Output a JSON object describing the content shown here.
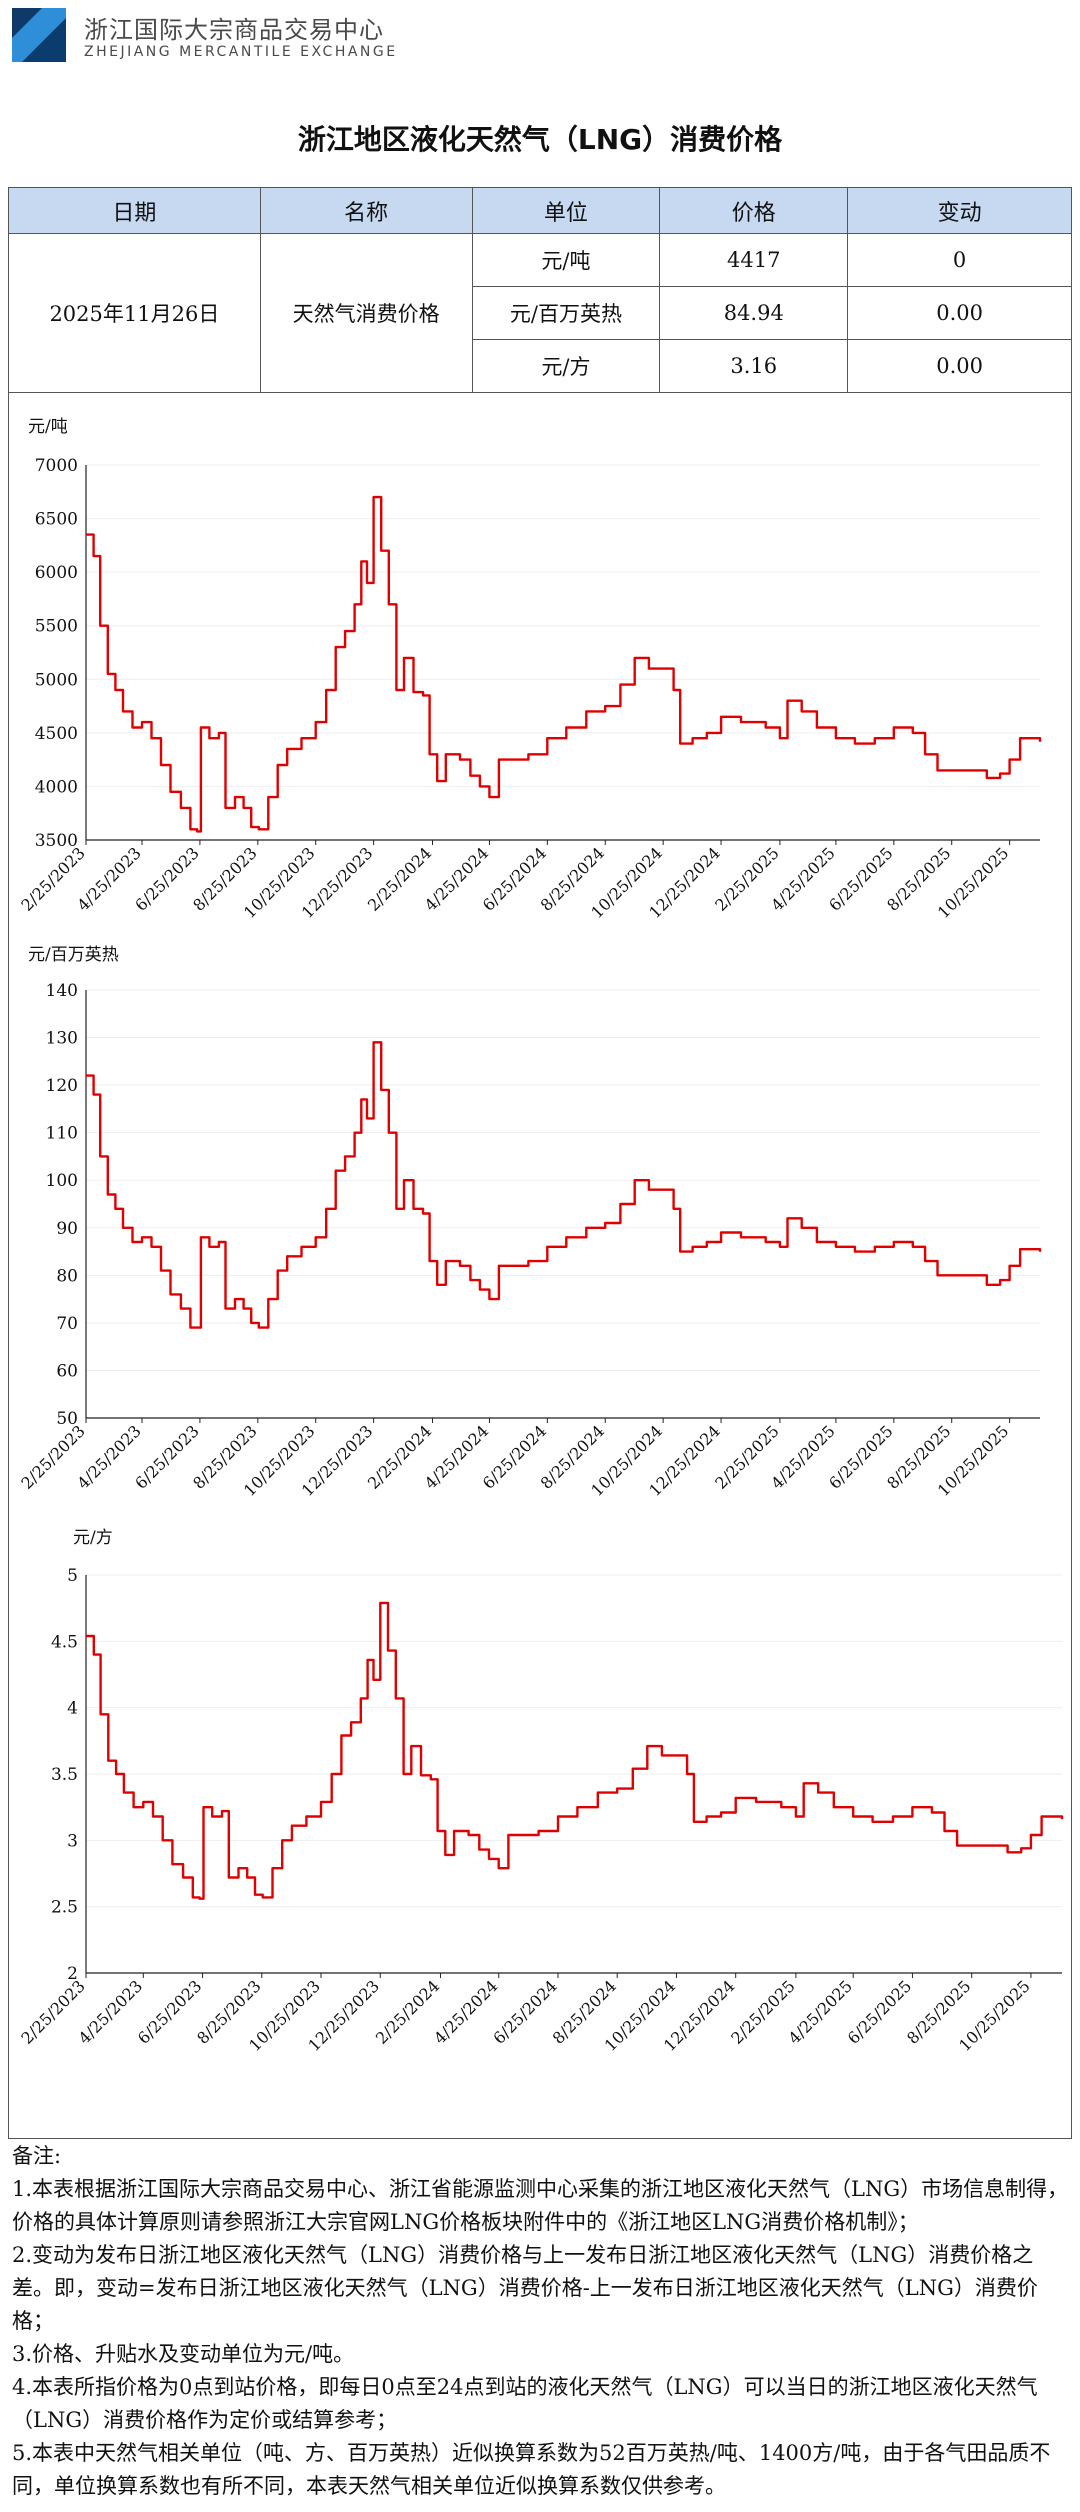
{
  "header": {
    "org_name_cn": "浙江国际大宗商品交易中心",
    "org_name_en": "ZHEJIANG MERCANTILE EXCHANGE"
  },
  "title": "浙江地区液化天然气（LNG）消费价格",
  "table": {
    "headers": [
      "日期",
      "名称",
      "单位",
      "价格",
      "变动"
    ],
    "date": "2025年11月26日",
    "name": "天然气消费价格",
    "rows": [
      {
        "unit": "元/吨",
        "price": "4417",
        "change": "0"
      },
      {
        "unit": "元/百万英热",
        "price": "84.94",
        "change": "0.00"
      },
      {
        "unit": "元/方",
        "price": "3.16",
        "change": "0.00"
      }
    ]
  },
  "colors": {
    "line": "#e00000",
    "header_bg": "#c6d9f1",
    "grid": "#eeeeee"
  },
  "chart_data": [
    {
      "type": "line",
      "ylabel": "元/吨",
      "ylim": [
        3500,
        7000
      ],
      "yticks": [
        3500,
        4000,
        4500,
        5000,
        5500,
        6000,
        6500,
        7000
      ],
      "xticks": [
        "2/25/2023",
        "4/25/2023",
        "6/25/2023",
        "8/25/2023",
        "10/25/2023",
        "12/25/2023",
        "2/25/2024",
        "4/25/2024",
        "6/25/2024",
        "8/25/2024",
        "10/25/2024",
        "12/25/2024",
        "2/25/2025",
        "4/25/2025",
        "6/25/2025",
        "8/25/2025",
        "10/25/2025"
      ],
      "x_start": "2023-02-25",
      "x_end": "2025-11-26",
      "points": [
        [
          "2023-02-25",
          6350
        ],
        [
          "2023-03-05",
          6150
        ],
        [
          "2023-03-12",
          5500
        ],
        [
          "2023-03-20",
          5050
        ],
        [
          "2023-03-28",
          4900
        ],
        [
          "2023-04-05",
          4700
        ],
        [
          "2023-04-15",
          4550
        ],
        [
          "2023-04-25",
          4600
        ],
        [
          "2023-05-05",
          4450
        ],
        [
          "2023-05-15",
          4200
        ],
        [
          "2023-05-25",
          3950
        ],
        [
          "2023-06-05",
          3800
        ],
        [
          "2023-06-15",
          3600
        ],
        [
          "2023-06-22",
          3580
        ],
        [
          "2023-06-26",
          4550
        ],
        [
          "2023-07-05",
          4450
        ],
        [
          "2023-07-15",
          4500
        ],
        [
          "2023-07-22",
          3800
        ],
        [
          "2023-08-01",
          3900
        ],
        [
          "2023-08-10",
          3800
        ],
        [
          "2023-08-18",
          3620
        ],
        [
          "2023-08-26",
          3600
        ],
        [
          "2023-09-05",
          3900
        ],
        [
          "2023-09-15",
          4200
        ],
        [
          "2023-09-25",
          4350
        ],
        [
          "2023-10-10",
          4450
        ],
        [
          "2023-10-25",
          4600
        ],
        [
          "2023-11-05",
          4900
        ],
        [
          "2023-11-15",
          5300
        ],
        [
          "2023-11-25",
          5450
        ],
        [
          "2023-12-05",
          5700
        ],
        [
          "2023-12-12",
          6100
        ],
        [
          "2023-12-18",
          5900
        ],
        [
          "2023-12-25",
          6700
        ],
        [
          "2024-01-02",
          6200
        ],
        [
          "2024-01-10",
          5700
        ],
        [
          "2024-01-18",
          4900
        ],
        [
          "2024-01-26",
          5200
        ],
        [
          "2024-02-05",
          4880
        ],
        [
          "2024-02-15",
          4850
        ],
        [
          "2024-02-22",
          4300
        ],
        [
          "2024-03-01",
          4050
        ],
        [
          "2024-03-10",
          4300
        ],
        [
          "2024-03-25",
          4250
        ],
        [
          "2024-04-05",
          4100
        ],
        [
          "2024-04-15",
          4000
        ],
        [
          "2024-04-25",
          3900
        ],
        [
          "2024-05-05",
          4250
        ],
        [
          "2024-05-20",
          4250
        ],
        [
          "2024-06-05",
          4300
        ],
        [
          "2024-06-25",
          4450
        ],
        [
          "2024-07-15",
          4550
        ],
        [
          "2024-08-05",
          4700
        ],
        [
          "2024-08-25",
          4750
        ],
        [
          "2024-09-10",
          4950
        ],
        [
          "2024-09-25",
          5200
        ],
        [
          "2024-10-10",
          5100
        ],
        [
          "2024-10-25",
          5100
        ],
        [
          "2024-11-05",
          4900
        ],
        [
          "2024-11-12",
          4400
        ],
        [
          "2024-11-25",
          4450
        ],
        [
          "2024-12-10",
          4500
        ],
        [
          "2024-12-25",
          4650
        ],
        [
          "2025-01-15",
          4600
        ],
        [
          "2025-02-10",
          4550
        ],
        [
          "2025-02-25",
          4450
        ],
        [
          "2025-03-05",
          4800
        ],
        [
          "2025-03-20",
          4700
        ],
        [
          "2025-04-05",
          4550
        ],
        [
          "2025-04-25",
          4450
        ],
        [
          "2025-05-15",
          4400
        ],
        [
          "2025-06-05",
          4450
        ],
        [
          "2025-06-25",
          4550
        ],
        [
          "2025-07-15",
          4500
        ],
        [
          "2025-07-28",
          4300
        ],
        [
          "2025-08-10",
          4150
        ],
        [
          "2025-08-25",
          4150
        ],
        [
          "2025-09-15",
          4150
        ],
        [
          "2025-10-01",
          4080
        ],
        [
          "2025-10-15",
          4120
        ],
        [
          "2025-10-25",
          4250
        ],
        [
          "2025-11-05",
          4450
        ],
        [
          "2025-11-15",
          4450
        ],
        [
          "2025-11-26",
          4417
        ]
      ]
    },
    {
      "type": "line",
      "ylabel": "元/百万英热",
      "ylim": [
        50,
        140
      ],
      "yticks": [
        50,
        60,
        70,
        80,
        90,
        100,
        110,
        120,
        130,
        140
      ],
      "xticks": [
        "2/25/2023",
        "4/25/2023",
        "6/25/2023",
        "8/25/2023",
        "10/25/2023",
        "12/25/2023",
        "2/25/2024",
        "4/25/2024",
        "6/25/2024",
        "8/25/2024",
        "10/25/2024",
        "12/25/2024",
        "2/25/2025",
        "4/25/2025",
        "6/25/2025",
        "8/25/2025",
        "10/25/2025"
      ],
      "x_start": "2023-02-25",
      "x_end": "2025-11-26",
      "points": [
        [
          "2023-02-25",
          122
        ],
        [
          "2023-03-05",
          118
        ],
        [
          "2023-03-12",
          105
        ],
        [
          "2023-03-20",
          97
        ],
        [
          "2023-03-28",
          94
        ],
        [
          "2023-04-05",
          90
        ],
        [
          "2023-04-15",
          87
        ],
        [
          "2023-04-25",
          88
        ],
        [
          "2023-05-05",
          86
        ],
        [
          "2023-05-15",
          81
        ],
        [
          "2023-05-25",
          76
        ],
        [
          "2023-06-05",
          73
        ],
        [
          "2023-06-15",
          69
        ],
        [
          "2023-06-22",
          69
        ],
        [
          "2023-06-26",
          88
        ],
        [
          "2023-07-05",
          86
        ],
        [
          "2023-07-15",
          87
        ],
        [
          "2023-07-22",
          73
        ],
        [
          "2023-08-01",
          75
        ],
        [
          "2023-08-10",
          73
        ],
        [
          "2023-08-18",
          70
        ],
        [
          "2023-08-26",
          69
        ],
        [
          "2023-09-05",
          75
        ],
        [
          "2023-09-15",
          81
        ],
        [
          "2023-09-25",
          84
        ],
        [
          "2023-10-10",
          86
        ],
        [
          "2023-10-25",
          88
        ],
        [
          "2023-11-05",
          94
        ],
        [
          "2023-11-15",
          102
        ],
        [
          "2023-11-25",
          105
        ],
        [
          "2023-12-05",
          110
        ],
        [
          "2023-12-12",
          117
        ],
        [
          "2023-12-18",
          113
        ],
        [
          "2023-12-25",
          129
        ],
        [
          "2024-01-02",
          119
        ],
        [
          "2024-01-10",
          110
        ],
        [
          "2024-01-18",
          94
        ],
        [
          "2024-01-26",
          100
        ],
        [
          "2024-02-05",
          94
        ],
        [
          "2024-02-15",
          93
        ],
        [
          "2024-02-22",
          83
        ],
        [
          "2024-03-01",
          78
        ],
        [
          "2024-03-10",
          83
        ],
        [
          "2024-03-25",
          82
        ],
        [
          "2024-04-05",
          79
        ],
        [
          "2024-04-15",
          77
        ],
        [
          "2024-04-25",
          75
        ],
        [
          "2024-05-05",
          82
        ],
        [
          "2024-05-20",
          82
        ],
        [
          "2024-06-05",
          83
        ],
        [
          "2024-06-25",
          86
        ],
        [
          "2024-07-15",
          88
        ],
        [
          "2024-08-05",
          90
        ],
        [
          "2024-08-25",
          91
        ],
        [
          "2024-09-10",
          95
        ],
        [
          "2024-09-25",
          100
        ],
        [
          "2024-10-10",
          98
        ],
        [
          "2024-10-25",
          98
        ],
        [
          "2024-11-05",
          94
        ],
        [
          "2024-11-12",
          85
        ],
        [
          "2024-11-25",
          86
        ],
        [
          "2024-12-10",
          87
        ],
        [
          "2024-12-25",
          89
        ],
        [
          "2025-01-15",
          88
        ],
        [
          "2025-02-10",
          87
        ],
        [
          "2025-02-25",
          86
        ],
        [
          "2025-03-05",
          92
        ],
        [
          "2025-03-20",
          90
        ],
        [
          "2025-04-05",
          87
        ],
        [
          "2025-04-25",
          86
        ],
        [
          "2025-05-15",
          85
        ],
        [
          "2025-06-05",
          86
        ],
        [
          "2025-06-25",
          87
        ],
        [
          "2025-07-15",
          86
        ],
        [
          "2025-07-28",
          83
        ],
        [
          "2025-08-10",
          80
        ],
        [
          "2025-08-25",
          80
        ],
        [
          "2025-09-15",
          80
        ],
        [
          "2025-10-01",
          78
        ],
        [
          "2025-10-15",
          79
        ],
        [
          "2025-10-25",
          82
        ],
        [
          "2025-11-05",
          85.5
        ],
        [
          "2025-11-15",
          85.5
        ],
        [
          "2025-11-26",
          84.94
        ]
      ]
    },
    {
      "type": "line",
      "ylabel": "元/方",
      "ylim": [
        2,
        5
      ],
      "yticks": [
        2,
        2.5,
        3,
        3.5,
        4,
        4.5,
        5
      ],
      "xticks": [
        "2/25/2023",
        "4/25/2023",
        "6/25/2023",
        "8/25/2023",
        "10/25/2023",
        "12/25/2023",
        "2/25/2024",
        "4/25/2024",
        "6/25/2024",
        "8/25/2024",
        "10/25/2024",
        "12/25/2024",
        "2/25/2025",
        "4/25/2025",
        "6/25/2025",
        "8/25/2025",
        "10/25/2025"
      ],
      "x_start": "2023-02-25",
      "x_end": "2025-11-26",
      "points": [
        [
          "2023-02-25",
          4.54
        ],
        [
          "2023-03-05",
          4.4
        ],
        [
          "2023-03-12",
          3.95
        ],
        [
          "2023-03-20",
          3.6
        ],
        [
          "2023-03-28",
          3.5
        ],
        [
          "2023-04-05",
          3.36
        ],
        [
          "2023-04-15",
          3.25
        ],
        [
          "2023-04-25",
          3.29
        ],
        [
          "2023-05-05",
          3.18
        ],
        [
          "2023-05-15",
          3.0
        ],
        [
          "2023-05-25",
          2.82
        ],
        [
          "2023-06-05",
          2.72
        ],
        [
          "2023-06-15",
          2.57
        ],
        [
          "2023-06-22",
          2.56
        ],
        [
          "2023-06-26",
          3.25
        ],
        [
          "2023-07-05",
          3.18
        ],
        [
          "2023-07-15",
          3.22
        ],
        [
          "2023-07-22",
          2.72
        ],
        [
          "2023-08-01",
          2.79
        ],
        [
          "2023-08-10",
          2.72
        ],
        [
          "2023-08-18",
          2.59
        ],
        [
          "2023-08-26",
          2.57
        ],
        [
          "2023-09-05",
          2.79
        ],
        [
          "2023-09-15",
          3.0
        ],
        [
          "2023-09-25",
          3.11
        ],
        [
          "2023-10-10",
          3.18
        ],
        [
          "2023-10-25",
          3.29
        ],
        [
          "2023-11-05",
          3.5
        ],
        [
          "2023-11-15",
          3.79
        ],
        [
          "2023-11-25",
          3.89
        ],
        [
          "2023-12-05",
          4.07
        ],
        [
          "2023-12-12",
          4.36
        ],
        [
          "2023-12-18",
          4.21
        ],
        [
          "2023-12-25",
          4.79
        ],
        [
          "2024-01-02",
          4.43
        ],
        [
          "2024-01-10",
          4.07
        ],
        [
          "2024-01-18",
          3.5
        ],
        [
          "2024-01-26",
          3.71
        ],
        [
          "2024-02-05",
          3.49
        ],
        [
          "2024-02-15",
          3.46
        ],
        [
          "2024-02-22",
          3.07
        ],
        [
          "2024-03-01",
          2.89
        ],
        [
          "2024-03-10",
          3.07
        ],
        [
          "2024-03-25",
          3.04
        ],
        [
          "2024-04-05",
          2.93
        ],
        [
          "2024-04-15",
          2.86
        ],
        [
          "2024-04-25",
          2.79
        ],
        [
          "2024-05-05",
          3.04
        ],
        [
          "2024-05-20",
          3.04
        ],
        [
          "2024-06-05",
          3.07
        ],
        [
          "2024-06-25",
          3.18
        ],
        [
          "2024-07-15",
          3.25
        ],
        [
          "2024-08-05",
          3.36
        ],
        [
          "2024-08-25",
          3.39
        ],
        [
          "2024-09-10",
          3.54
        ],
        [
          "2024-09-25",
          3.71
        ],
        [
          "2024-10-10",
          3.64
        ],
        [
          "2024-10-25",
          3.64
        ],
        [
          "2024-11-05",
          3.5
        ],
        [
          "2024-11-12",
          3.14
        ],
        [
          "2024-11-25",
          3.18
        ],
        [
          "2024-12-10",
          3.21
        ],
        [
          "2024-12-25",
          3.32
        ],
        [
          "2025-01-15",
          3.29
        ],
        [
          "2025-02-10",
          3.25
        ],
        [
          "2025-02-25",
          3.18
        ],
        [
          "2025-03-05",
          3.43
        ],
        [
          "2025-03-20",
          3.36
        ],
        [
          "2025-04-05",
          3.25
        ],
        [
          "2025-04-25",
          3.18
        ],
        [
          "2025-05-15",
          3.14
        ],
        [
          "2025-06-05",
          3.18
        ],
        [
          "2025-06-25",
          3.25
        ],
        [
          "2025-07-15",
          3.21
        ],
        [
          "2025-07-28",
          3.07
        ],
        [
          "2025-08-10",
          2.96
        ],
        [
          "2025-08-25",
          2.96
        ],
        [
          "2025-09-15",
          2.96
        ],
        [
          "2025-10-01",
          2.91
        ],
        [
          "2025-10-15",
          2.94
        ],
        [
          "2025-10-25",
          3.04
        ],
        [
          "2025-11-05",
          3.18
        ],
        [
          "2025-11-15",
          3.18
        ],
        [
          "2025-11-26",
          3.16
        ]
      ]
    }
  ],
  "notes": {
    "heading": "备注:",
    "items": [
      "1.本表根据浙江国际大宗商品交易中心、浙江省能源监测中心采集的浙江地区液化天然气（LNG）市场信息制得，价格的具体计算原则请参照浙江大宗官网LNG价格板块附件中的《浙江地区LNG消费价格机制》；",
      "2.变动为发布日浙江地区液化天然气（LNG）消费价格与上一发布日浙江地区液化天然气（LNG）消费价格之差。即，变动=发布日浙江地区液化天然气（LNG）消费价格-上一发布日浙江地区液化天然气（LNG）消费价格；",
      "3.价格、升贴水及变动单位为元/吨。",
      "4.本表所指价格为0点到站价格，即每日0点至24点到站的液化天然气（LNG）可以当日的浙江地区液化天然气（LNG）消费价格作为定价或结算参考；",
      "5.本表中天然气相关单位（吨、方、百万英热）近似换算系数为52百万英热/吨、1400方/吨，由于各气田品质不同，单位换算系数也有所不同，本表天然气相关单位近似换算系数仅供参考。"
    ]
  }
}
